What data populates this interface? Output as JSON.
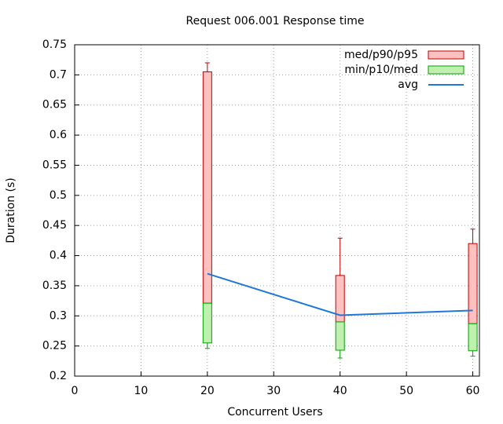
{
  "chart_data": {
    "type": "box",
    "title": "Request 006.001 Response time",
    "x_label": "Concurrent Users",
    "y_label": "Duration (s)",
    "x": [
      20,
      40,
      60
    ],
    "stats": {
      "min": [
        0.246,
        0.23,
        0.233
      ],
      "p10": [
        0.255,
        0.243,
        0.242
      ],
      "med": [
        0.321,
        0.29,
        0.287
      ],
      "p90": [
        0.705,
        0.367,
        0.42
      ],
      "p95": [
        0.72,
        0.429,
        0.444
      ],
      "avg": [
        0.37,
        0.301,
        0.309
      ]
    },
    "legend": [
      {
        "name": "med/p90/p95",
        "color": "#c00000",
        "fill": "#ffc0c0"
      },
      {
        "name": "min/p10/med",
        "color": "#00a000",
        "fill": "#c0f0b0"
      },
      {
        "name": "avg",
        "color": "#1e78d8"
      }
    ],
    "xlim": [
      0,
      61
    ],
    "xticks": [
      0,
      10,
      20,
      30,
      40,
      50,
      60
    ],
    "ylim": [
      0.2,
      0.75
    ],
    "yticks": [
      0.2,
      0.25,
      0.3,
      0.35,
      0.4,
      0.45,
      0.5,
      0.55,
      0.6,
      0.65,
      0.7,
      0.75
    ],
    "grid": true
  }
}
